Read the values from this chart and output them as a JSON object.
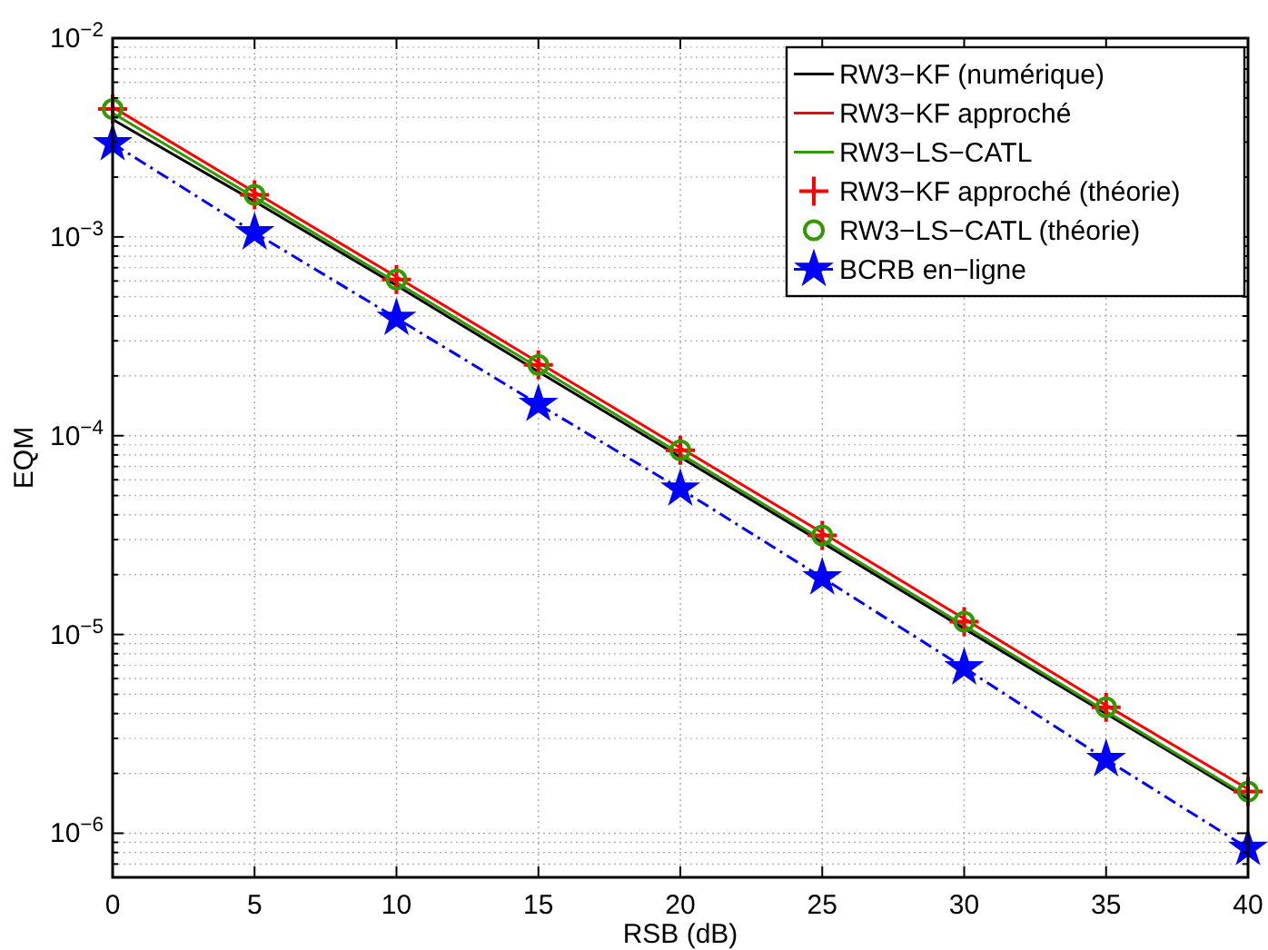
{
  "chart_data": {
    "type": "line",
    "xlabel": "RSB (dB)",
    "ylabel": "EQM",
    "log": "y",
    "grid": true,
    "legend": "top right",
    "x": [
      0,
      5,
      10,
      15,
      20,
      25,
      30,
      35,
      40
    ],
    "xlim": [
      0,
      40
    ],
    "xticks": [
      0,
      5,
      10,
      15,
      20,
      25,
      30,
      35,
      40
    ],
    "ylim": [
      6e-07,
      0.01
    ],
    "yticks": [
      {
        "value": 1e-06,
        "label": "10$^{−6}$"
      },
      {
        "value": 1e-05,
        "label": "10$^{−5}$"
      },
      {
        "value": 0.0001,
        "label": "10$^{−4}$"
      },
      {
        "value": 0.001,
        "label": "10$^{−3}$"
      },
      {
        "value": 0.01,
        "label": "10$^{−2}$"
      }
    ],
    "series": [
      {
        "name": "RW3−KF (numérique)",
        "color": "#000000",
        "marker": "none",
        "line_style": "solid",
        "values": [
          0.0039,
          0.00151,
          0.00057,
          0.00021,
          7.8e-05,
          2.9e-05,
          1.07e-05,
          4e-06,
          1.49e-06
        ]
      },
      {
        "name": "RW3−KF approché",
        "color": "#ff0000",
        "marker": "none",
        "line_style": "solid",
        "values": [
          0.0045,
          0.00168,
          0.00063,
          0.000234,
          8.7e-05,
          3.25e-05,
          1.2e-05,
          4.4e-06,
          1.67e-06
        ]
      },
      {
        "name": "RW3−LS−CATL",
        "color": "#339900",
        "marker": "none",
        "line_style": "solid",
        "values": [
          0.0042,
          0.00158,
          0.00059,
          0.00022,
          8.1e-05,
          3e-05,
          1.11e-05,
          4.1e-06,
          1.53e-06
        ]
      },
      {
        "name": "RW3−KF approché (théorie)",
        "color": "#ff0000",
        "type": "scatter",
        "marker": "cross",
        "values": [
          0.0044,
          0.00163,
          0.00061,
          0.000227,
          8.45e-05,
          3.15e-05,
          1.16e-05,
          4.3e-06,
          1.62e-06
        ]
      },
      {
        "name": "RW3−LS−CATL (théorie)",
        "color": "#339900",
        "type": "scatter",
        "marker": "circle",
        "values": [
          0.0044,
          0.00163,
          0.00061,
          0.000227,
          8.45e-05,
          3.15e-05,
          1.16e-05,
          4.3e-06,
          1.62e-06
        ]
      },
      {
        "name": "BCRB en−ligne",
        "color": "#0000ff",
        "marker": "star",
        "line_style": "dashed",
        "values": [
          0.00295,
          0.00105,
          0.00039,
          0.000144,
          5.4e-05,
          1.93e-05,
          6.8e-06,
          2.35e-06,
          8.4e-07
        ]
      }
    ]
  }
}
